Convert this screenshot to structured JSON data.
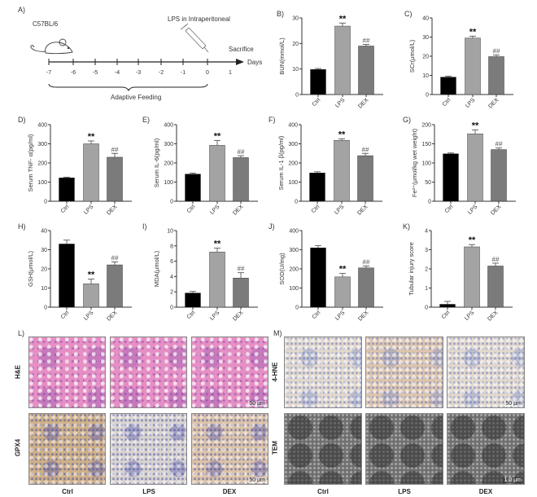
{
  "panel_a": {
    "label": "A)",
    "strain": "C57BL/6",
    "injection": "LPS in Intraperitoneal",
    "sacrifice": "Sacrifice",
    "axis_label": "Days",
    "days": [
      "-7",
      "-6",
      "-5",
      "-4",
      "-3",
      "-2",
      "-1",
      "0",
      "1"
    ],
    "period": "Adaptive Feeding"
  },
  "colors": {
    "Ctrl": "#000000",
    "LPS": "#a3a3a3",
    "DEX": "#7b7b7b"
  },
  "chart_data": [
    {
      "panel": "B)",
      "type": "bar",
      "ylabel": "BUN(mmol/L)",
      "ylim": [
        0,
        30
      ],
      "ticks": [
        "0",
        "10",
        "20",
        "30"
      ],
      "categories": [
        "Ctrl",
        "LPS",
        "DEX"
      ],
      "values": [
        9.8,
        26.8,
        19.0
      ],
      "errors": [
        0.4,
        1.2,
        0.6
      ],
      "annotations": [
        "",
        "**",
        "##"
      ]
    },
    {
      "panel": "C)",
      "type": "bar",
      "ylabel": "SCr(μmol/L)",
      "ylim": [
        0,
        40
      ],
      "ticks": [
        "0",
        "10",
        "20",
        "30",
        "40"
      ],
      "categories": [
        "Ctrl",
        "LPS",
        "DEX"
      ],
      "values": [
        9.1,
        29.5,
        19.8
      ],
      "errors": [
        0.5,
        1.0,
        0.8
      ],
      "annotations": [
        "",
        "**",
        "##"
      ]
    },
    {
      "panel": "D)",
      "type": "bar",
      "ylabel": "Serum TNF- α(pg/ml)",
      "ylim": [
        0,
        400
      ],
      "ticks": [
        "0",
        "100",
        "200",
        "300",
        "400"
      ],
      "categories": [
        "Ctrl",
        "LPS",
        "DEX"
      ],
      "values": [
        122,
        300,
        230
      ],
      "errors": [
        4,
        15,
        20
      ],
      "annotations": [
        "",
        "**",
        "##"
      ]
    },
    {
      "panel": "E)",
      "type": "bar",
      "ylabel": "Serum IL-6(pg/ml)",
      "ylim": [
        0,
        400
      ],
      "ticks": [
        "0",
        "100",
        "200",
        "300",
        "400"
      ],
      "categories": [
        "Ctrl",
        "LPS",
        "DEX"
      ],
      "values": [
        142,
        292,
        228
      ],
      "errors": [
        5,
        25,
        10
      ],
      "annotations": [
        "",
        "**",
        "##"
      ]
    },
    {
      "panel": "F)",
      "type": "bar",
      "ylabel": "Serum IL-1 β(pg/ml)",
      "ylim": [
        0,
        400
      ],
      "ticks": [
        "0",
        "100",
        "200",
        "300",
        "400"
      ],
      "categories": [
        "Ctrl",
        "LPS",
        "DEX"
      ],
      "values": [
        148,
        318,
        238
      ],
      "errors": [
        6,
        8,
        12
      ],
      "annotations": [
        "",
        "**",
        "##"
      ]
    },
    {
      "panel": "G)",
      "type": "bar",
      "ylabel": "Fe²⁺(μmol/kg wet weight)",
      "ylim": [
        0,
        200
      ],
      "ticks": [
        "0",
        "50",
        "100",
        "150",
        "200"
      ],
      "categories": [
        "Ctrl",
        "LPS",
        "DEX"
      ],
      "values": [
        124,
        176,
        135
      ],
      "errors": [
        2,
        10,
        4
      ],
      "annotations": [
        "",
        "**",
        "##"
      ]
    },
    {
      "panel": "H)",
      "type": "bar",
      "ylabel": "GSH(μmol/L)",
      "ylim": [
        0,
        40
      ],
      "ticks": [
        "0",
        "10",
        "20",
        "30",
        "40"
      ],
      "categories": [
        "Ctrl",
        "LPS",
        "DEX"
      ],
      "values": [
        33,
        12.2,
        22.1
      ],
      "errors": [
        2,
        2.5,
        1.5
      ],
      "annotations": [
        "",
        "**",
        "##"
      ]
    },
    {
      "panel": "I)",
      "type": "bar",
      "ylabel": "MDA(μmol/L)",
      "ylim": [
        0,
        10
      ],
      "ticks": [
        "0",
        "2",
        "4",
        "6",
        "8",
        "10"
      ],
      "categories": [
        "Ctrl",
        "LPS",
        "DEX"
      ],
      "values": [
        1.85,
        7.2,
        3.8
      ],
      "errors": [
        0.2,
        0.5,
        0.7
      ],
      "annotations": [
        "",
        "**",
        "##"
      ]
    },
    {
      "panel": "J)",
      "type": "bar",
      "ylabel": "SOD(U/mg)",
      "ylim": [
        0,
        400
      ],
      "ticks": [
        "0",
        "100",
        "200",
        "300",
        "400"
      ],
      "categories": [
        "Ctrl",
        "LPS",
        "DEX"
      ],
      "values": [
        310,
        158,
        205
      ],
      "errors": [
        12,
        18,
        10
      ],
      "annotations": [
        "",
        "**",
        "##"
      ]
    },
    {
      "panel": "K)",
      "type": "bar",
      "ylabel": "Tubular injury score",
      "ylim": [
        0,
        4
      ],
      "ticks": [
        "0",
        "1",
        "2",
        "3",
        "4"
      ],
      "categories": [
        "Ctrl",
        "LPS",
        "DEX"
      ],
      "values": [
        0.15,
        3.15,
        2.15
      ],
      "errors": [
        0.15,
        0.12,
        0.15
      ],
      "annotations": [
        "",
        "**",
        "##"
      ]
    }
  ],
  "panel_l": {
    "label": "L)",
    "rows": [
      "H&E",
      "GPX4"
    ],
    "columns": [
      "Ctrl",
      "LPS",
      "DEX"
    ],
    "scale_bar": "50 μm"
  },
  "panel_m": {
    "label": "M)",
    "rows": [
      "4-HNE",
      "TEM"
    ],
    "columns": [
      "Ctrl",
      "LPS",
      "DEX"
    ],
    "scale_bar": "50 μm",
    "tem_scale_bar": "1.0 μm"
  }
}
